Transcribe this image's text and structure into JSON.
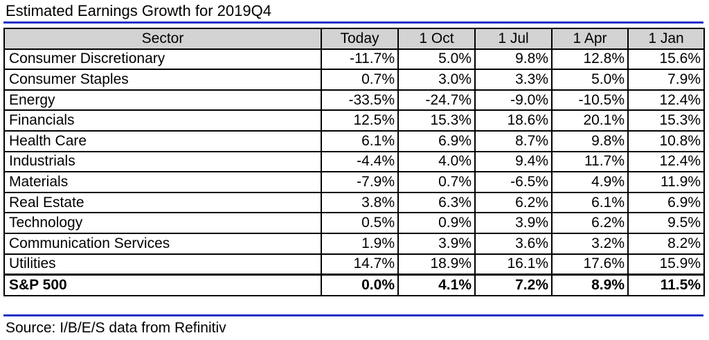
{
  "title": "Estimated Earnings Growth for  2019Q4",
  "source": "Source: I/B/E/S data from Refinitiv",
  "colors": {
    "rule": "#2130c8",
    "header_bg": "#d3d3d3"
  },
  "chart_data": {
    "type": "table",
    "title": "Estimated Earnings Growth for  2019Q4",
    "columns": [
      "Sector",
      "Today",
      "1 Oct",
      "1 Jul",
      "1 Apr",
      "1 Jan"
    ],
    "rows": [
      [
        "Consumer Discretionary",
        "-11.7%",
        "5.0%",
        "9.8%",
        "12.8%",
        "15.6%"
      ],
      [
        "Consumer Staples",
        "0.7%",
        "3.0%",
        "3.3%",
        "5.0%",
        "7.9%"
      ],
      [
        "Energy",
        "-33.5%",
        "-24.7%",
        "-9.0%",
        "-10.5%",
        "12.4%"
      ],
      [
        "Financials",
        "12.5%",
        "15.3%",
        "18.6%",
        "20.1%",
        "15.3%"
      ],
      [
        "Health Care",
        "6.1%",
        "6.9%",
        "8.7%",
        "9.8%",
        "10.8%"
      ],
      [
        "Industrials",
        "-4.4%",
        "4.0%",
        "9.4%",
        "11.7%",
        "12.4%"
      ],
      [
        "Materials",
        "-7.9%",
        "0.7%",
        "-6.5%",
        "4.9%",
        "11.9%"
      ],
      [
        "Real Estate",
        "3.8%",
        "6.3%",
        "6.2%",
        "6.1%",
        "6.9%"
      ],
      [
        "Technology",
        "0.5%",
        "0.9%",
        "3.9%",
        "6.2%",
        "9.5%"
      ],
      [
        "Communication Services",
        "1.9%",
        "3.9%",
        "3.6%",
        "3.2%",
        "8.2%"
      ],
      [
        "Utilities",
        "14.7%",
        "18.9%",
        "16.1%",
        "17.6%",
        "15.9%"
      ]
    ],
    "total_row": [
      "S&P 500",
      "0.0%",
      "4.1%",
      "7.2%",
      "8.9%",
      "11.5%"
    ]
  }
}
